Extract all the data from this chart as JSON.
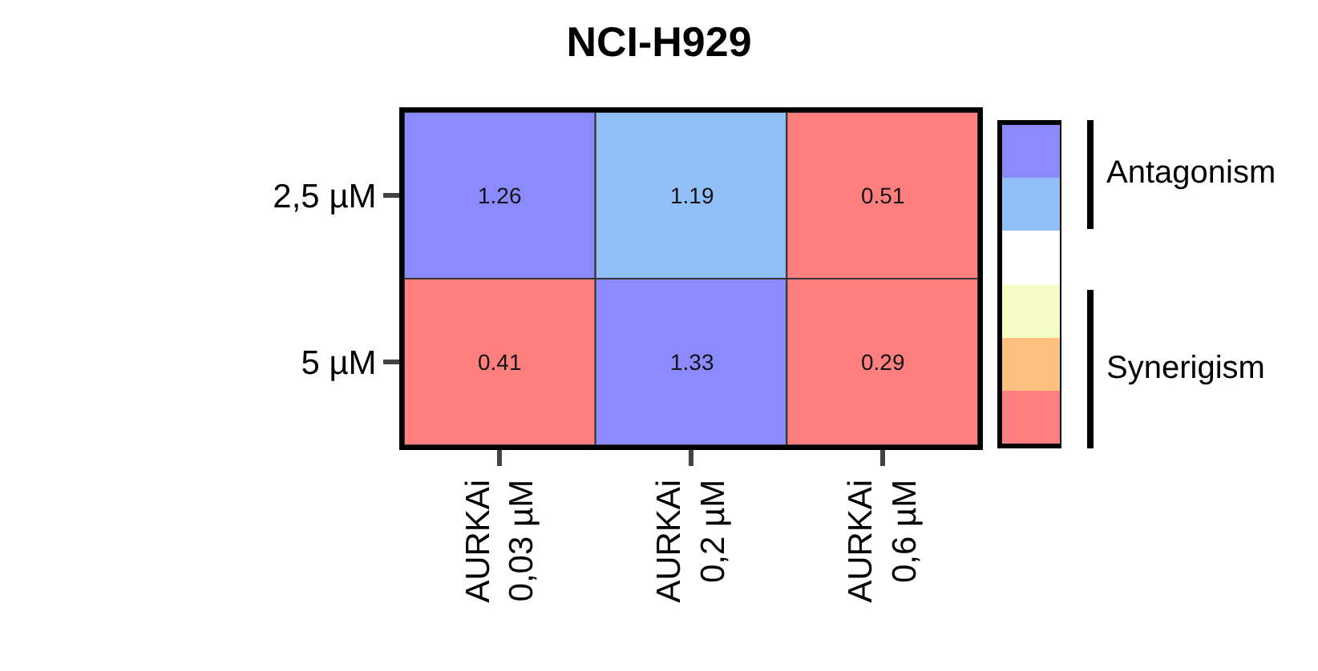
{
  "chart_data": {
    "type": "heatmap",
    "title": "NCI-H929",
    "categories": [
      "AURKAi\n0,03 µM",
      "AURKAi\n0,2 µM",
      "AURKAi\n0,6 µM"
    ],
    "y_categories": [
      "2,5 µM",
      "5 µM"
    ],
    "cells": [
      [
        1.26,
        1.19,
        0.51
      ],
      [
        0.41,
        1.33,
        0.29
      ]
    ],
    "colors": [
      [
        "#8b8bff",
        "#91c0f8",
        "#ff7f7f"
      ],
      [
        "#ff7f7f",
        "#8b8bff",
        "#ff7f7f"
      ]
    ],
    "data_labels": true,
    "annotations": [
      "Antagonism",
      "Synerigism"
    ]
  }
}
